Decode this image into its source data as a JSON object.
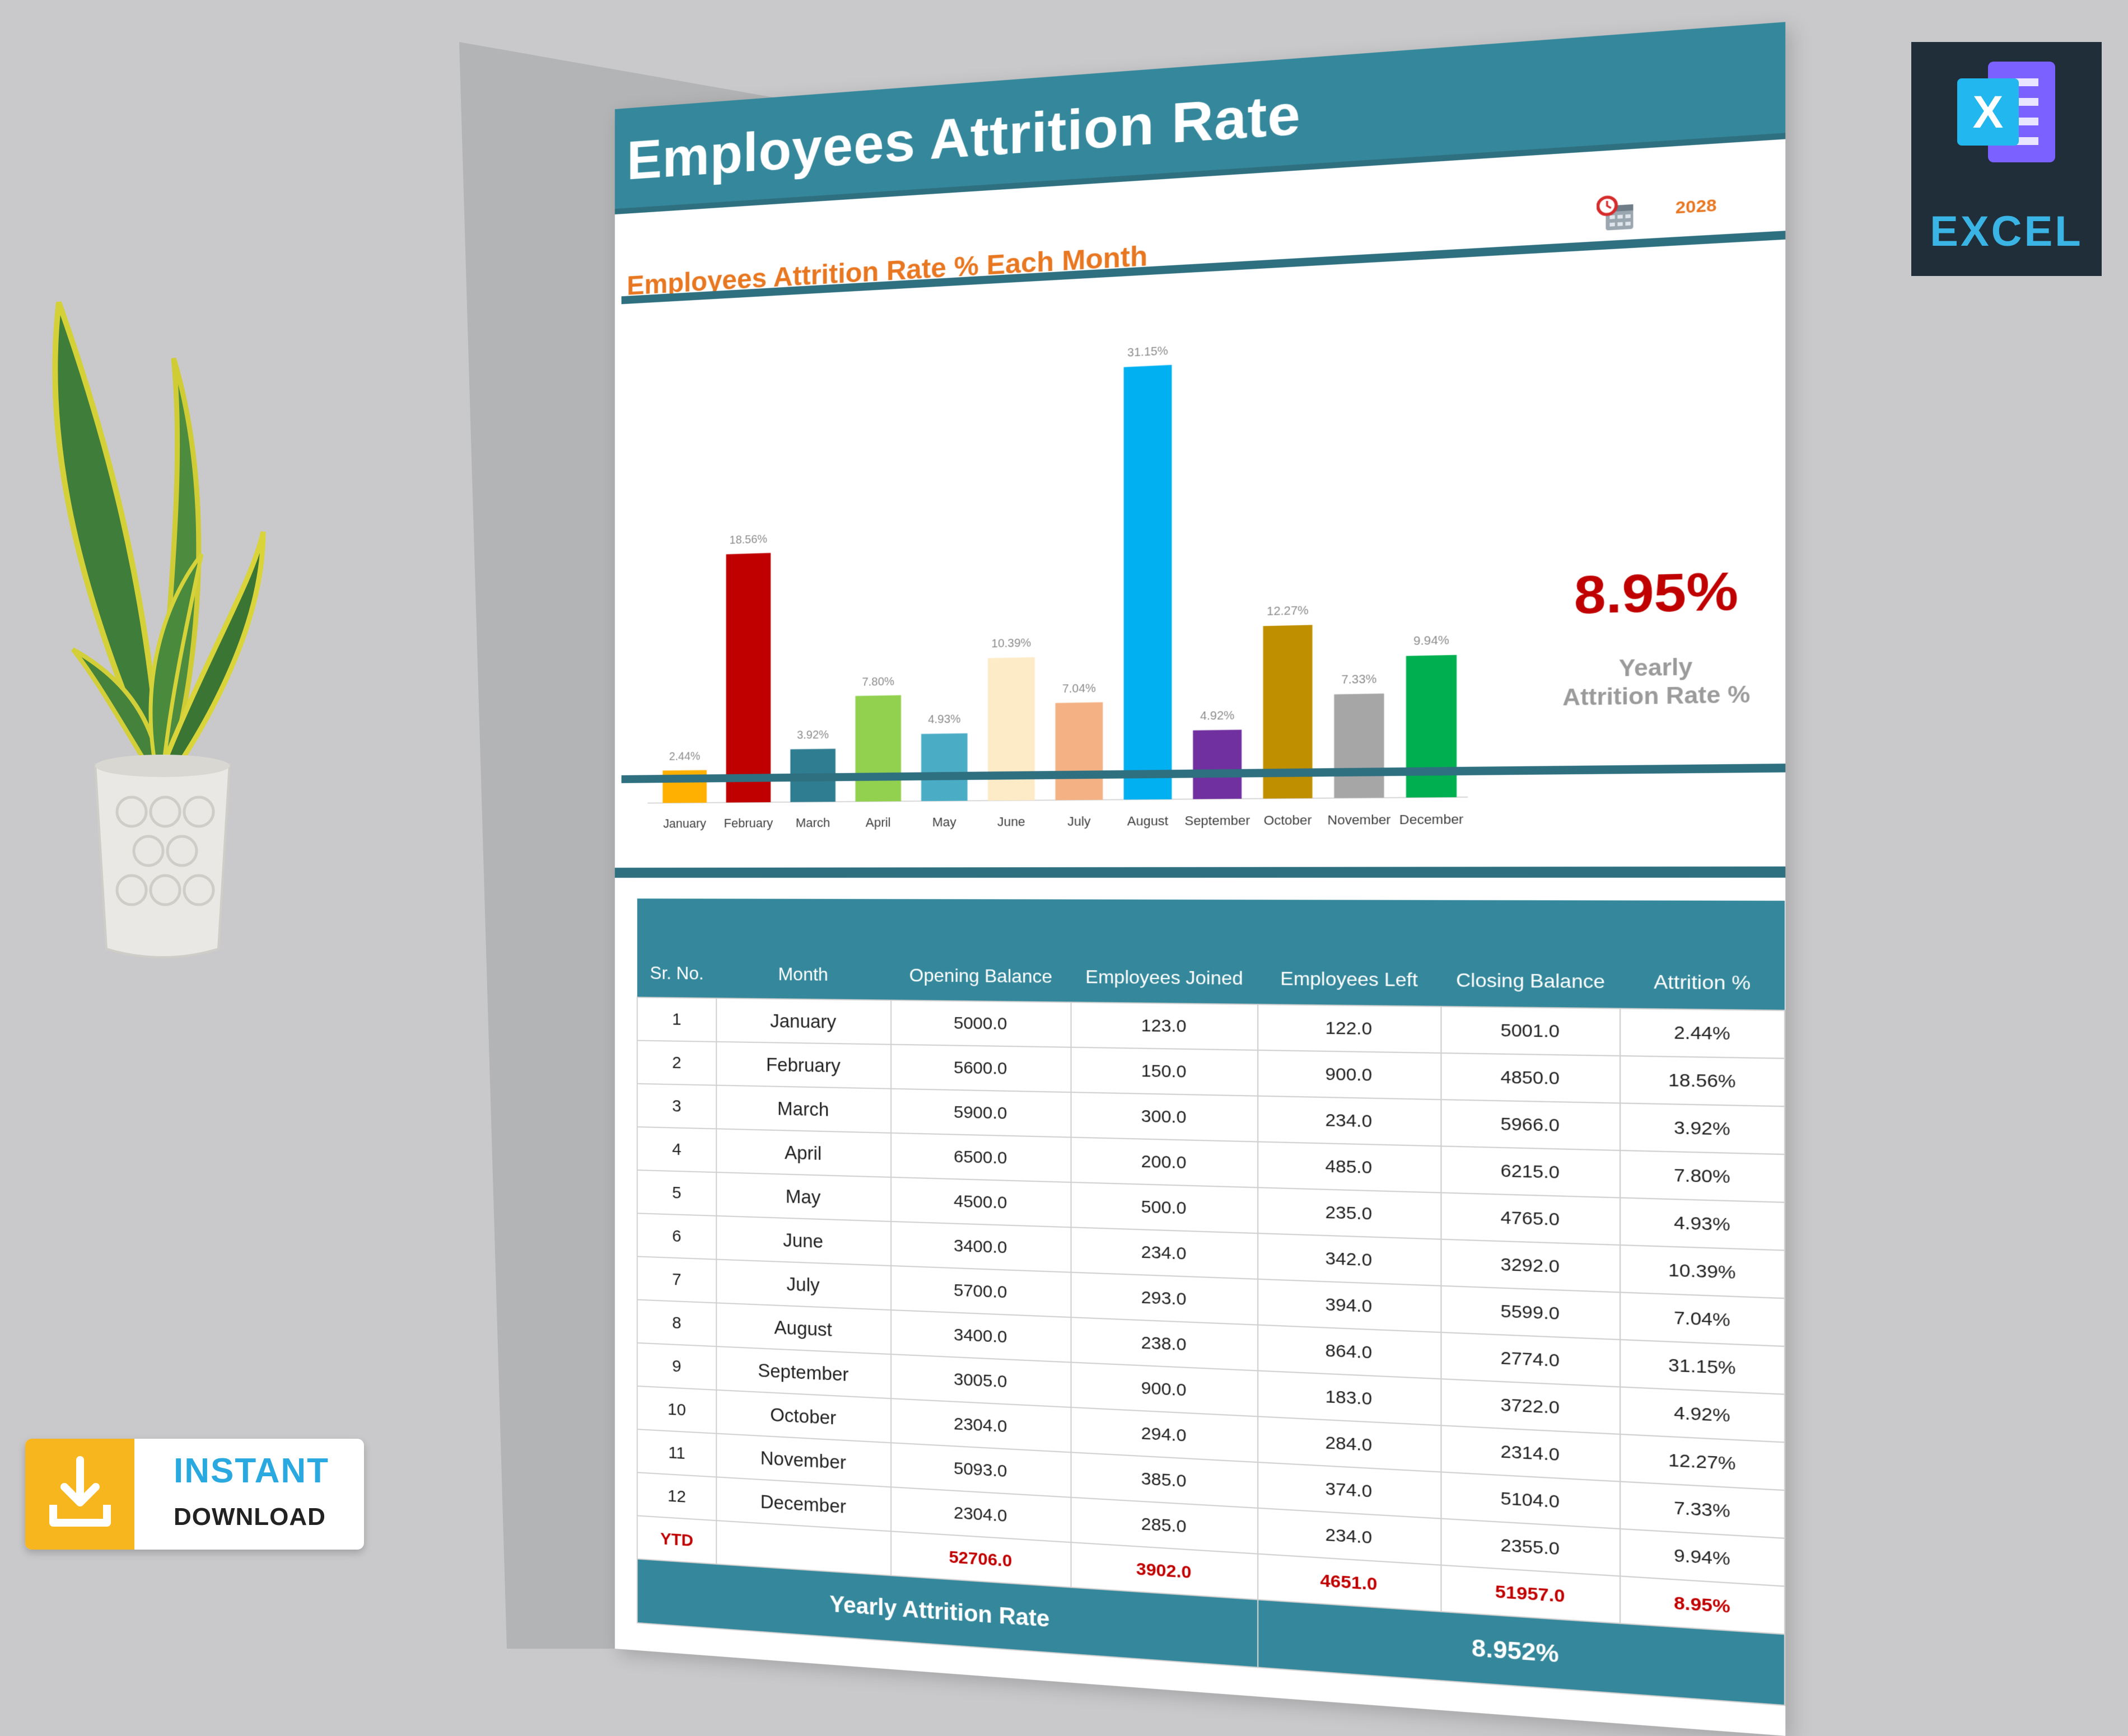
{
  "sheet": {
    "title": "Employees Attrition Rate",
    "chart_heading": "Employees Attrition Rate % Each Month",
    "year": "2028",
    "kpi_value": "8.95%",
    "kpi_label_line1": "Yearly",
    "kpi_label_line2": "Attrition Rate %"
  },
  "chart_data": {
    "type": "bar",
    "categories": [
      "January",
      "February",
      "March",
      "April",
      "May",
      "June",
      "July",
      "August",
      "September",
      "October",
      "November",
      "December"
    ],
    "values": [
      2.44,
      18.56,
      3.92,
      7.8,
      4.93,
      10.39,
      7.04,
      31.15,
      4.92,
      12.27,
      7.33,
      9.94
    ],
    "data_labels": [
      "2.44%",
      "18.56%",
      "3.92%",
      "7.80%",
      "4.93%",
      "10.39%",
      "7.04%",
      "31.15%",
      "4.92%",
      "12.27%",
      "7.33%",
      "9.94%"
    ],
    "colors": [
      "#ffb000",
      "#c00000",
      "#2e7d90",
      "#92d050",
      "#4bacc6",
      "#fdebc8",
      "#f4b183",
      "#00b0f0",
      "#7030a0",
      "#bf8f00",
      "#a6a6a6",
      "#00b050"
    ],
    "ylim": [
      0,
      33
    ],
    "title": "Employees Attrition Rate % Each Month",
    "grid": false,
    "legend": "none"
  },
  "table": {
    "headers": [
      "Sr. No.",
      "Month",
      "Opening Balance",
      "Employees Joined",
      "Employees Left",
      "Closing Balance",
      "Attrition %"
    ],
    "rows": [
      [
        "1",
        "January",
        "5000.0",
        "123.0",
        "122.0",
        "5001.0",
        "2.44%"
      ],
      [
        "2",
        "February",
        "5600.0",
        "150.0",
        "900.0",
        "4850.0",
        "18.56%"
      ],
      [
        "3",
        "March",
        "5900.0",
        "300.0",
        "234.0",
        "5966.0",
        "3.92%"
      ],
      [
        "4",
        "April",
        "6500.0",
        "200.0",
        "485.0",
        "6215.0",
        "7.80%"
      ],
      [
        "5",
        "May",
        "4500.0",
        "500.0",
        "235.0",
        "4765.0",
        "4.93%"
      ],
      [
        "6",
        "June",
        "3400.0",
        "234.0",
        "342.0",
        "3292.0",
        "10.39%"
      ],
      [
        "7",
        "July",
        "5700.0",
        "293.0",
        "394.0",
        "5599.0",
        "7.04%"
      ],
      [
        "8",
        "August",
        "3400.0",
        "238.0",
        "864.0",
        "2774.0",
        "31.15%"
      ],
      [
        "9",
        "September",
        "3005.0",
        "900.0",
        "183.0",
        "3722.0",
        "4.92%"
      ],
      [
        "10",
        "October",
        "2304.0",
        "294.0",
        "284.0",
        "2314.0",
        "12.27%"
      ],
      [
        "11",
        "November",
        "5093.0",
        "385.0",
        "374.0",
        "5104.0",
        "7.33%"
      ],
      [
        "12",
        "December",
        "2304.0",
        "285.0",
        "234.0",
        "2355.0",
        "9.94%"
      ]
    ],
    "ytd": {
      "label": "YTD",
      "opening": "52706.0",
      "joined": "3902.0",
      "left": "4651.0",
      "closing": "51957.0",
      "attrition": "8.95%"
    },
    "footer_label": "Yearly Attrition Rate",
    "footer_value": "8.952%"
  },
  "badges": {
    "excel_letter": "X",
    "excel_word": "EXCEL",
    "instant": "INSTANT",
    "download": "DOWNLOAD"
  },
  "icons": [
    "calendar-clock-icon",
    "excel-logo-icon",
    "download-tray-icon"
  ]
}
